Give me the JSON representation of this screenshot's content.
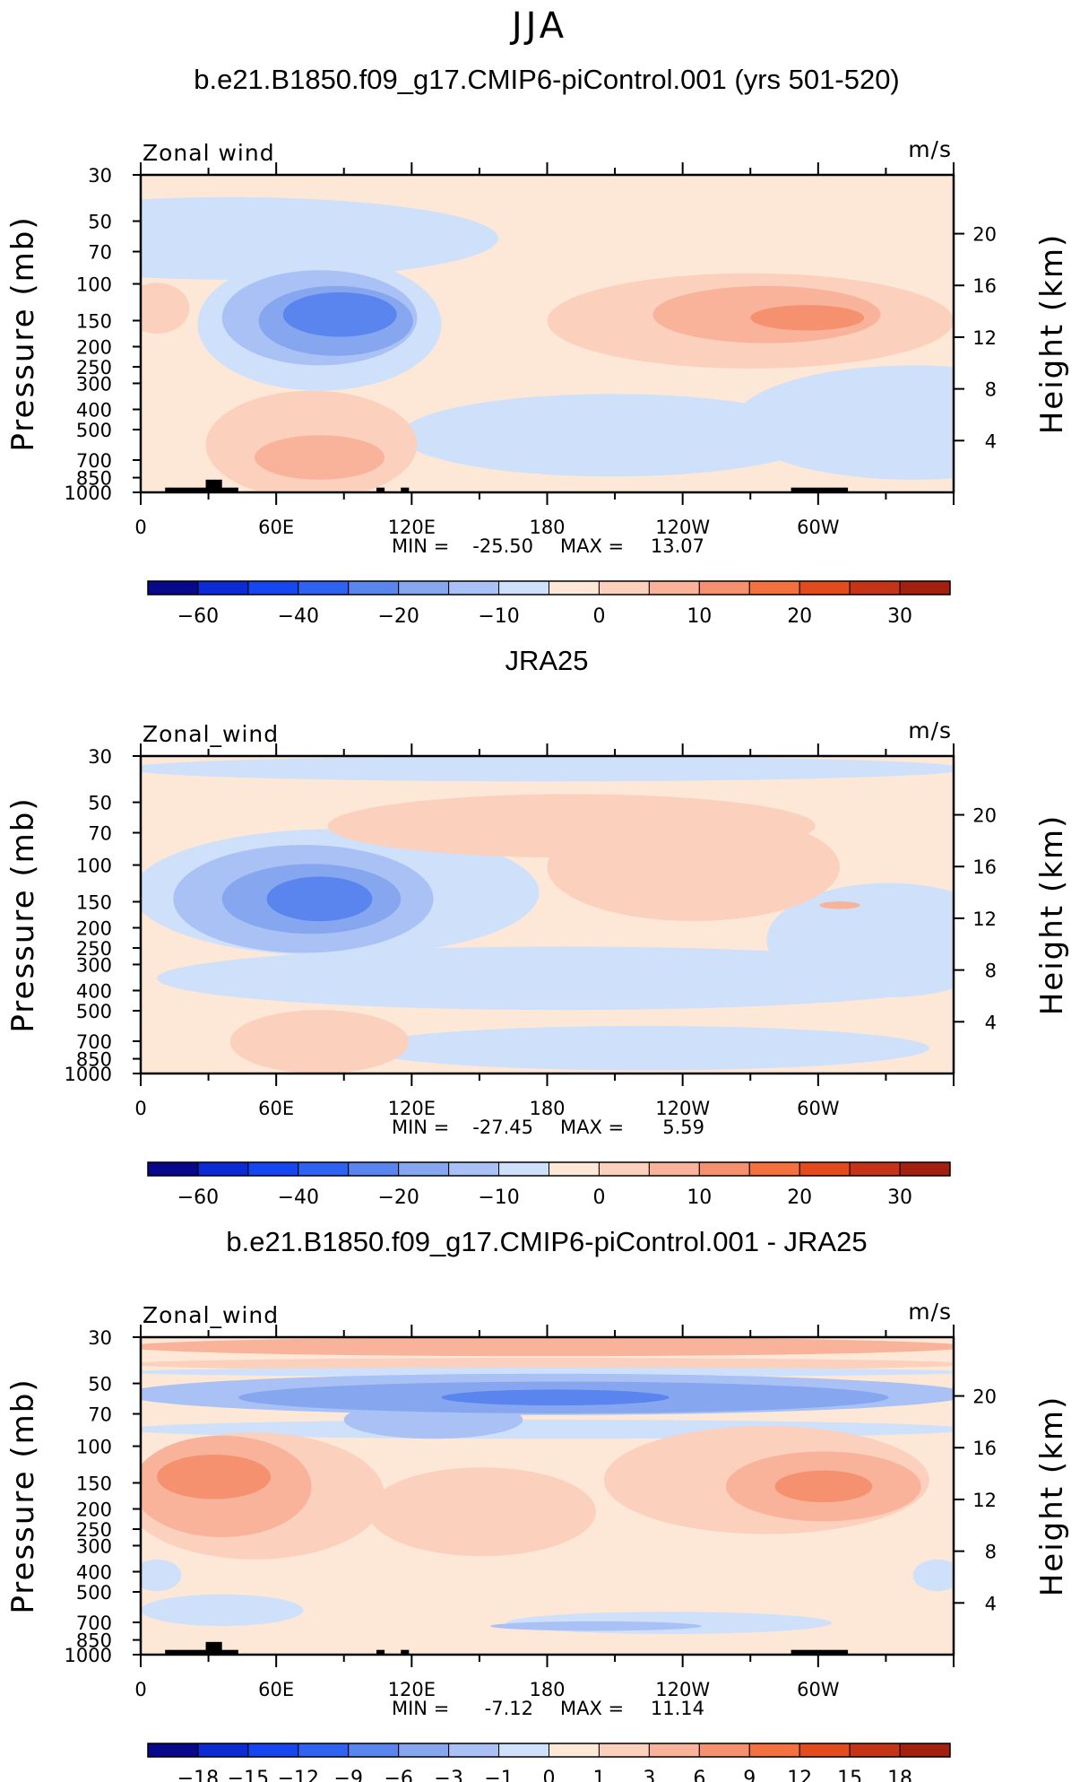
{
  "main_title": "JJA",
  "colors": {
    "palette_blue_to_red": [
      "#08088a",
      "#0c2bd4",
      "#1646f0",
      "#2f62f2",
      "#5a84ee",
      "#86a6ef",
      "#a9c1f4",
      "#cfe0fa",
      "#fde8d8",
      "#fbd0bd",
      "#f9b39a",
      "#f6916f",
      "#f3703f",
      "#e34b1d",
      "#c53416",
      "#a32010",
      "#7a0a05"
    ],
    "terrain": "#000000"
  },
  "chart_data": [
    {
      "type": "heatmap",
      "id": "panel-1",
      "title": "b.e21.B1850.f09_g17.CMIP6-piControl.001 (yrs 501-520)",
      "variable_label": "Zonal wind",
      "units_label": "m/s",
      "ylabel": "Pressure (mb)",
      "y2label": "Height (km)",
      "x_ticklabels": [
        "0",
        "60E",
        "120E",
        "180",
        "120W",
        "60W"
      ],
      "y_ticklabels": [
        "30",
        "50",
        "70",
        "100",
        "150",
        "200",
        "250",
        "300",
        "400",
        "500",
        "700",
        "850",
        "1000"
      ],
      "y2_ticklabels": [
        "20",
        "16",
        "12",
        "8",
        "4"
      ],
      "stats": {
        "min_label": "MIN =",
        "min": "-25.50",
        "max_label": "MAX =",
        "max": "13.07"
      },
      "colorbar_labels": [
        "-60",
        "-40",
        "-20",
        "-10",
        "0",
        "10",
        "20",
        "30"
      ]
    },
    {
      "type": "heatmap",
      "id": "panel-2",
      "title": "JRA25",
      "variable_label": "Zonal_wind",
      "units_label": "m/s",
      "ylabel": "Pressure (mb)",
      "y2label": "Height (km)",
      "x_ticklabels": [
        "0",
        "60E",
        "120E",
        "180",
        "120W",
        "60W"
      ],
      "y_ticklabels": [
        "30",
        "50",
        "70",
        "100",
        "150",
        "200",
        "250",
        "300",
        "400",
        "500",
        "700",
        "850",
        "1000"
      ],
      "y2_ticklabels": [
        "20",
        "16",
        "12",
        "8",
        "4"
      ],
      "stats": {
        "min_label": "MIN =",
        "min": "-27.45",
        "max_label": "MAX =",
        "max": "5.59"
      },
      "colorbar_labels": [
        "-60",
        "-40",
        "-20",
        "-10",
        "0",
        "10",
        "20",
        "30"
      ]
    },
    {
      "type": "heatmap",
      "id": "panel-3",
      "title": "b.e21.B1850.f09_g17.CMIP6-piControl.001 - JRA25",
      "variable_label": "Zonal_wind",
      "units_label": "m/s",
      "ylabel": "Pressure (mb)",
      "y2label": "Height (km)",
      "x_ticklabels": [
        "0",
        "60E",
        "120E",
        "180",
        "120W",
        "60W"
      ],
      "y_ticklabels": [
        "30",
        "50",
        "70",
        "100",
        "150",
        "200",
        "250",
        "300",
        "400",
        "500",
        "700",
        "850",
        "1000"
      ],
      "y2_ticklabels": [
        "20",
        "16",
        "12",
        "8",
        "4"
      ],
      "stats": {
        "min_label": "MIN =",
        "min": "-7.12",
        "max_label": "MAX =",
        "max": "11.14"
      },
      "colorbar_labels": [
        "-18",
        "-15",
        "-12",
        "-9",
        "-6",
        "-3",
        "-1",
        "0",
        "1",
        "3",
        "6",
        "9",
        "12",
        "15",
        "18"
      ]
    }
  ]
}
